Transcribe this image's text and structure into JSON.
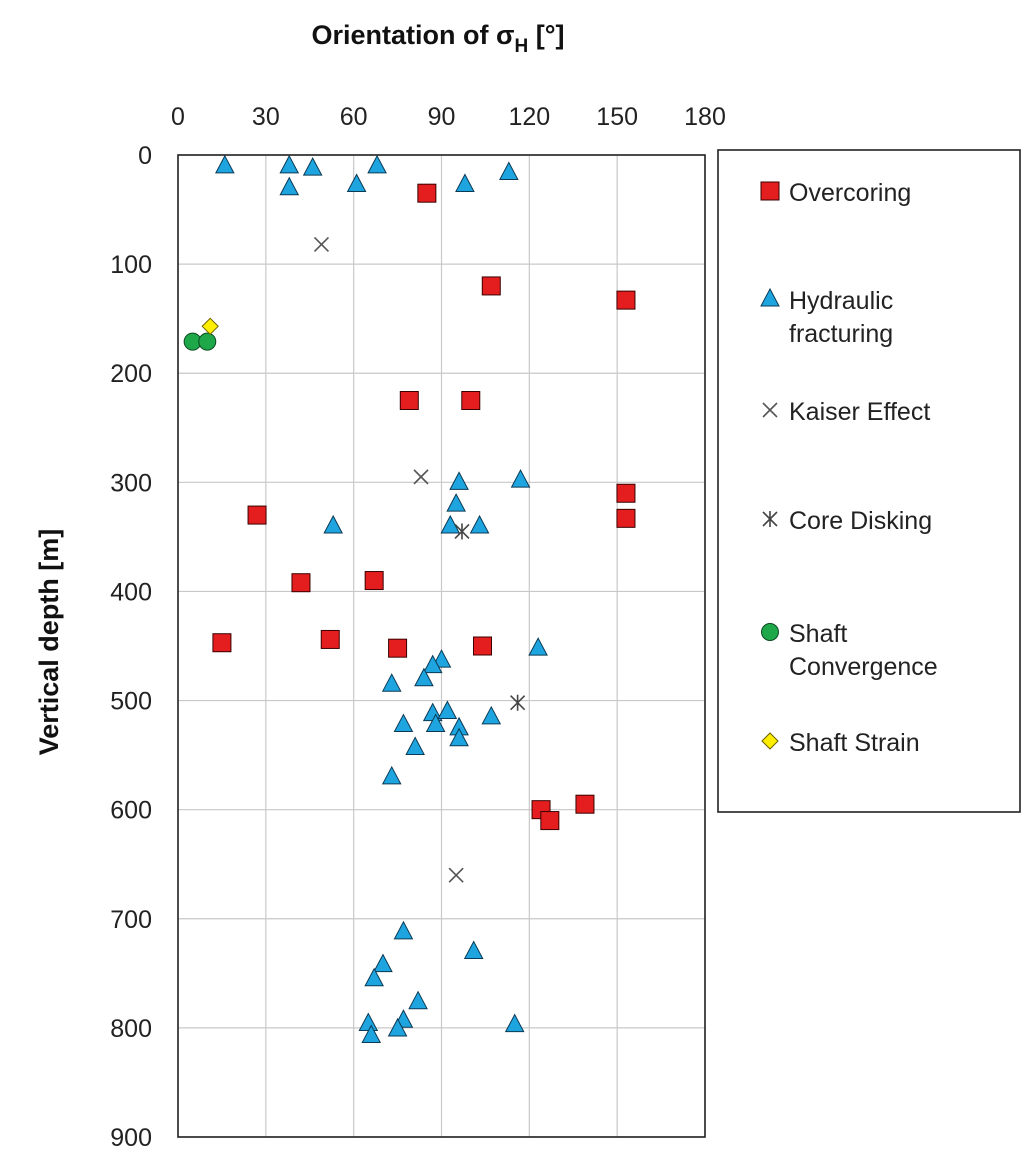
{
  "chart_data": {
    "type": "scatter",
    "title": "",
    "xlabel": "Orientation of σ",
    "xlabel_subscript": "H",
    "xlabel_unit": " [°]",
    "ylabel": "Vertical depth [m]",
    "xlim": [
      0,
      180
    ],
    "ylim": [
      0,
      900
    ],
    "y_inverted": true,
    "x_axis_position": "top",
    "x_ticks": [
      0,
      30,
      60,
      90,
      120,
      150,
      180
    ],
    "y_ticks": [
      0,
      100,
      200,
      300,
      400,
      500,
      600,
      700,
      800,
      900
    ],
    "grid": true,
    "legend_position": "right",
    "series": [
      {
        "name": "Overcoring",
        "marker": "square",
        "color": "#e41e1e",
        "points": [
          [
            85,
            35
          ],
          [
            107,
            120
          ],
          [
            153,
            133
          ],
          [
            79,
            225
          ],
          [
            100,
            225
          ],
          [
            153,
            310
          ],
          [
            153,
            333
          ],
          [
            27,
            330
          ],
          [
            42,
            392
          ],
          [
            67,
            390
          ],
          [
            15,
            447
          ],
          [
            52,
            444
          ],
          [
            75,
            452
          ],
          [
            104,
            450
          ],
          [
            139,
            595
          ],
          [
            124,
            600
          ],
          [
            127,
            610
          ]
        ]
      },
      {
        "name": "Hydraulic\nfracturing",
        "legend_lines": [
          "Hydraulic",
          "fracturing"
        ],
        "marker": "triangle",
        "color": "#1ea5e0",
        "points": [
          [
            16,
            10
          ],
          [
            38,
            10
          ],
          [
            46,
            12
          ],
          [
            68,
            10
          ],
          [
            113,
            16
          ],
          [
            38,
            30
          ],
          [
            61,
            27
          ],
          [
            98,
            27
          ],
          [
            96,
            300
          ],
          [
            117,
            298
          ],
          [
            95,
            320
          ],
          [
            93,
            340
          ],
          [
            103,
            340
          ],
          [
            53,
            340
          ],
          [
            123,
            452
          ],
          [
            90,
            463
          ],
          [
            87,
            468
          ],
          [
            84,
            480
          ],
          [
            73,
            485
          ],
          [
            87,
            512
          ],
          [
            92,
            510
          ],
          [
            107,
            515
          ],
          [
            77,
            522
          ],
          [
            88,
            522
          ],
          [
            96,
            525
          ],
          [
            96,
            535
          ],
          [
            81,
            543
          ],
          [
            73,
            570
          ],
          [
            77,
            712
          ],
          [
            101,
            730
          ],
          [
            70,
            742
          ],
          [
            67,
            755
          ],
          [
            82,
            776
          ],
          [
            77,
            793
          ],
          [
            115,
            797
          ],
          [
            65,
            796
          ],
          [
            75,
            801
          ],
          [
            66,
            807
          ]
        ]
      },
      {
        "name": "Kaiser Effect",
        "marker": "x",
        "color": "#555555",
        "points": [
          [
            49,
            82
          ],
          [
            83,
            295
          ],
          [
            95,
            660
          ]
        ]
      },
      {
        "name": "Core Disking",
        "marker": "star",
        "color": "#444444",
        "points": [
          [
            97,
            345
          ],
          [
            116,
            502
          ]
        ]
      },
      {
        "name": "Shaft\nConvergence",
        "legend_lines": [
          "Shaft",
          "Convergence"
        ],
        "marker": "circle",
        "color": "#1fa84a",
        "points": [
          [
            5,
            171
          ],
          [
            10,
            171
          ]
        ]
      },
      {
        "name": "Shaft Strain",
        "marker": "diamond",
        "color": "#ffee00",
        "points": [
          [
            11,
            157
          ]
        ]
      }
    ]
  }
}
